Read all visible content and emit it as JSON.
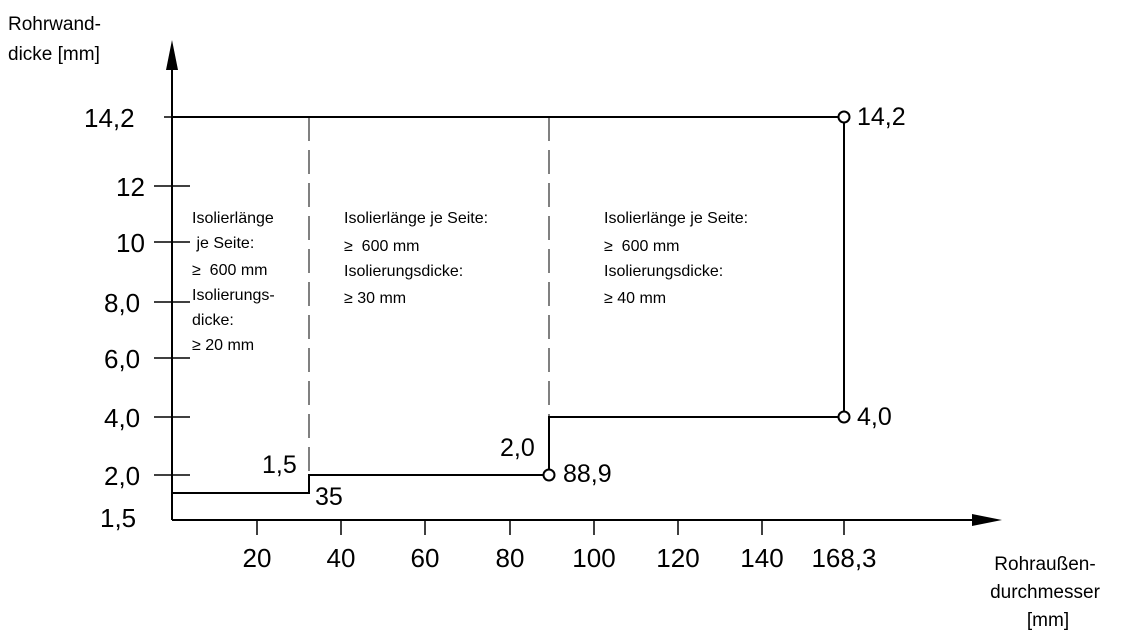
{
  "diagram": {
    "y_axis_title": [
      "Rohrwand-",
      "dicke [mm]"
    ],
    "x_axis_title": [
      "Rohraußen-",
      "durchmesser",
      "[mm]"
    ],
    "y_tick_labels": [
      "1,5",
      "2,0",
      "4,0",
      "6,0",
      "8,0",
      "10",
      "12",
      "14,2"
    ],
    "x_tick_labels": [
      "20",
      "40",
      "60",
      "80",
      "100",
      "120",
      "140",
      "168,3"
    ],
    "zones": [
      {
        "lines": [
          "Isolierlänge",
          " je Seite:",
          "≥  600 mm",
          "Isolierungs-",
          "dicke:",
          "≥ 20 mm"
        ]
      },
      {
        "lines": [
          "Isolierlänge je Seite:",
          "≥  600 mm",
          "Isolierungsdicke:",
          "≥ 30 mm"
        ]
      },
      {
        "lines": [
          "Isolierlänge je Seite:",
          "≥  600 mm",
          "Isolierungsdicke:",
          "≥ 40 mm"
        ]
      }
    ],
    "annotations": {
      "step1_wall": "1,5",
      "step1_diameter": "35",
      "step2_wall": "2,0",
      "step2_diameter": "88,9",
      "step3_wall": "4,0",
      "top_wall": "14,2"
    }
  }
}
